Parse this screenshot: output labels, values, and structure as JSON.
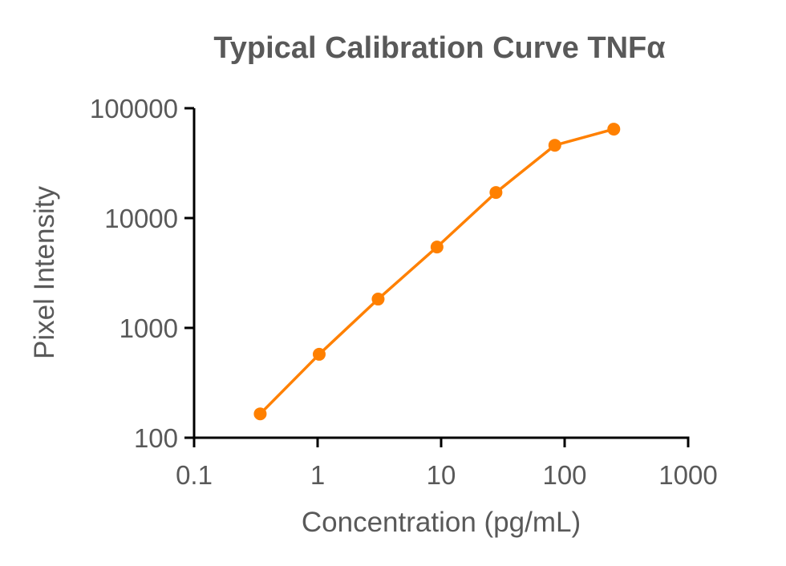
{
  "chart_data": {
    "type": "line",
    "title": "Typical Calibration Curve TNFα",
    "xlabel": "Concentration (pg/mL)",
    "ylabel": "Pixel Intensity",
    "xscale": "log",
    "yscale": "log",
    "xlim": [
      0.1,
      1000
    ],
    "ylim": [
      100,
      100000
    ],
    "xticks": [
      "0.1",
      "1",
      "10",
      "100",
      "1000"
    ],
    "yticks": [
      "100",
      "1000",
      "10000",
      "100000"
    ],
    "grid": false,
    "series": [
      {
        "name": "TNFα",
        "color": "#FF8000",
        "x": [
          0.343,
          1.03,
          3.09,
          9.26,
          27.8,
          83.3,
          250
        ],
        "y": [
          165,
          575,
          1830,
          5450,
          17100,
          46000,
          64500
        ]
      }
    ]
  }
}
